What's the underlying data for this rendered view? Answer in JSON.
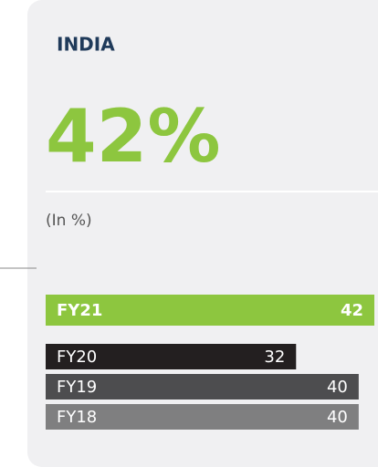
{
  "chart_data": {
    "type": "hbar",
    "title": "INDIA",
    "headline": "42%",
    "subtitle": "(In %)",
    "categories": [
      "FY21",
      "FY20",
      "FY19",
      "FY18"
    ],
    "values": [
      42,
      32,
      40,
      40
    ],
    "colors": [
      "#8dc63f",
      "#231f20",
      "#4d4d4f",
      "#7f7f80"
    ]
  }
}
